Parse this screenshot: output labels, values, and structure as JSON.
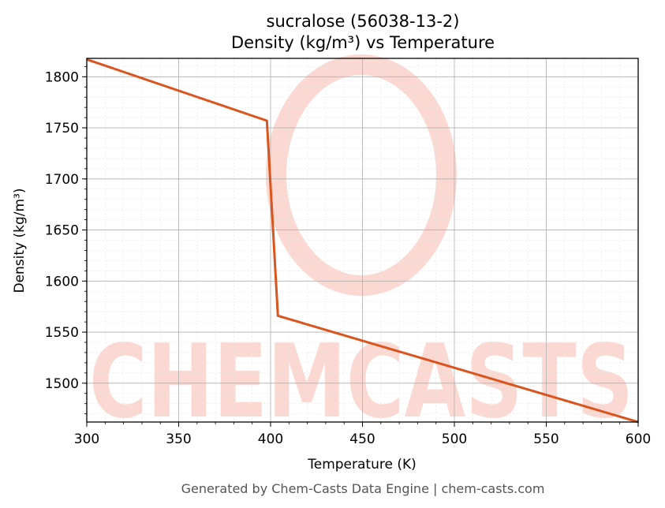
{
  "chart_data": {
    "type": "line",
    "title_line1": "sucralose (56038-13-2)",
    "title_line2": "Density (kg/m³) vs Temperature",
    "xlabel": "Temperature (K)",
    "ylabel": "Density (kg/m³)",
    "xlim": [
      300,
      600
    ],
    "ylim": [
      1462,
      1818
    ],
    "x_ticks": [
      "300",
      "350",
      "400",
      "450",
      "500",
      "550",
      "600"
    ],
    "y_ticks": [
      "1500",
      "1550",
      "1600",
      "1650",
      "1700",
      "1750",
      "1800"
    ],
    "grid": true,
    "series": [
      {
        "color": "#d9541e",
        "x": [
          300,
          398,
          404,
          600
        ],
        "y": [
          1817,
          1757,
          1566,
          1462
        ]
      }
    ]
  },
  "watermark": "CHEMCASTS",
  "footer": "Generated by Chem-Casts Data Engine | chem-casts.com"
}
